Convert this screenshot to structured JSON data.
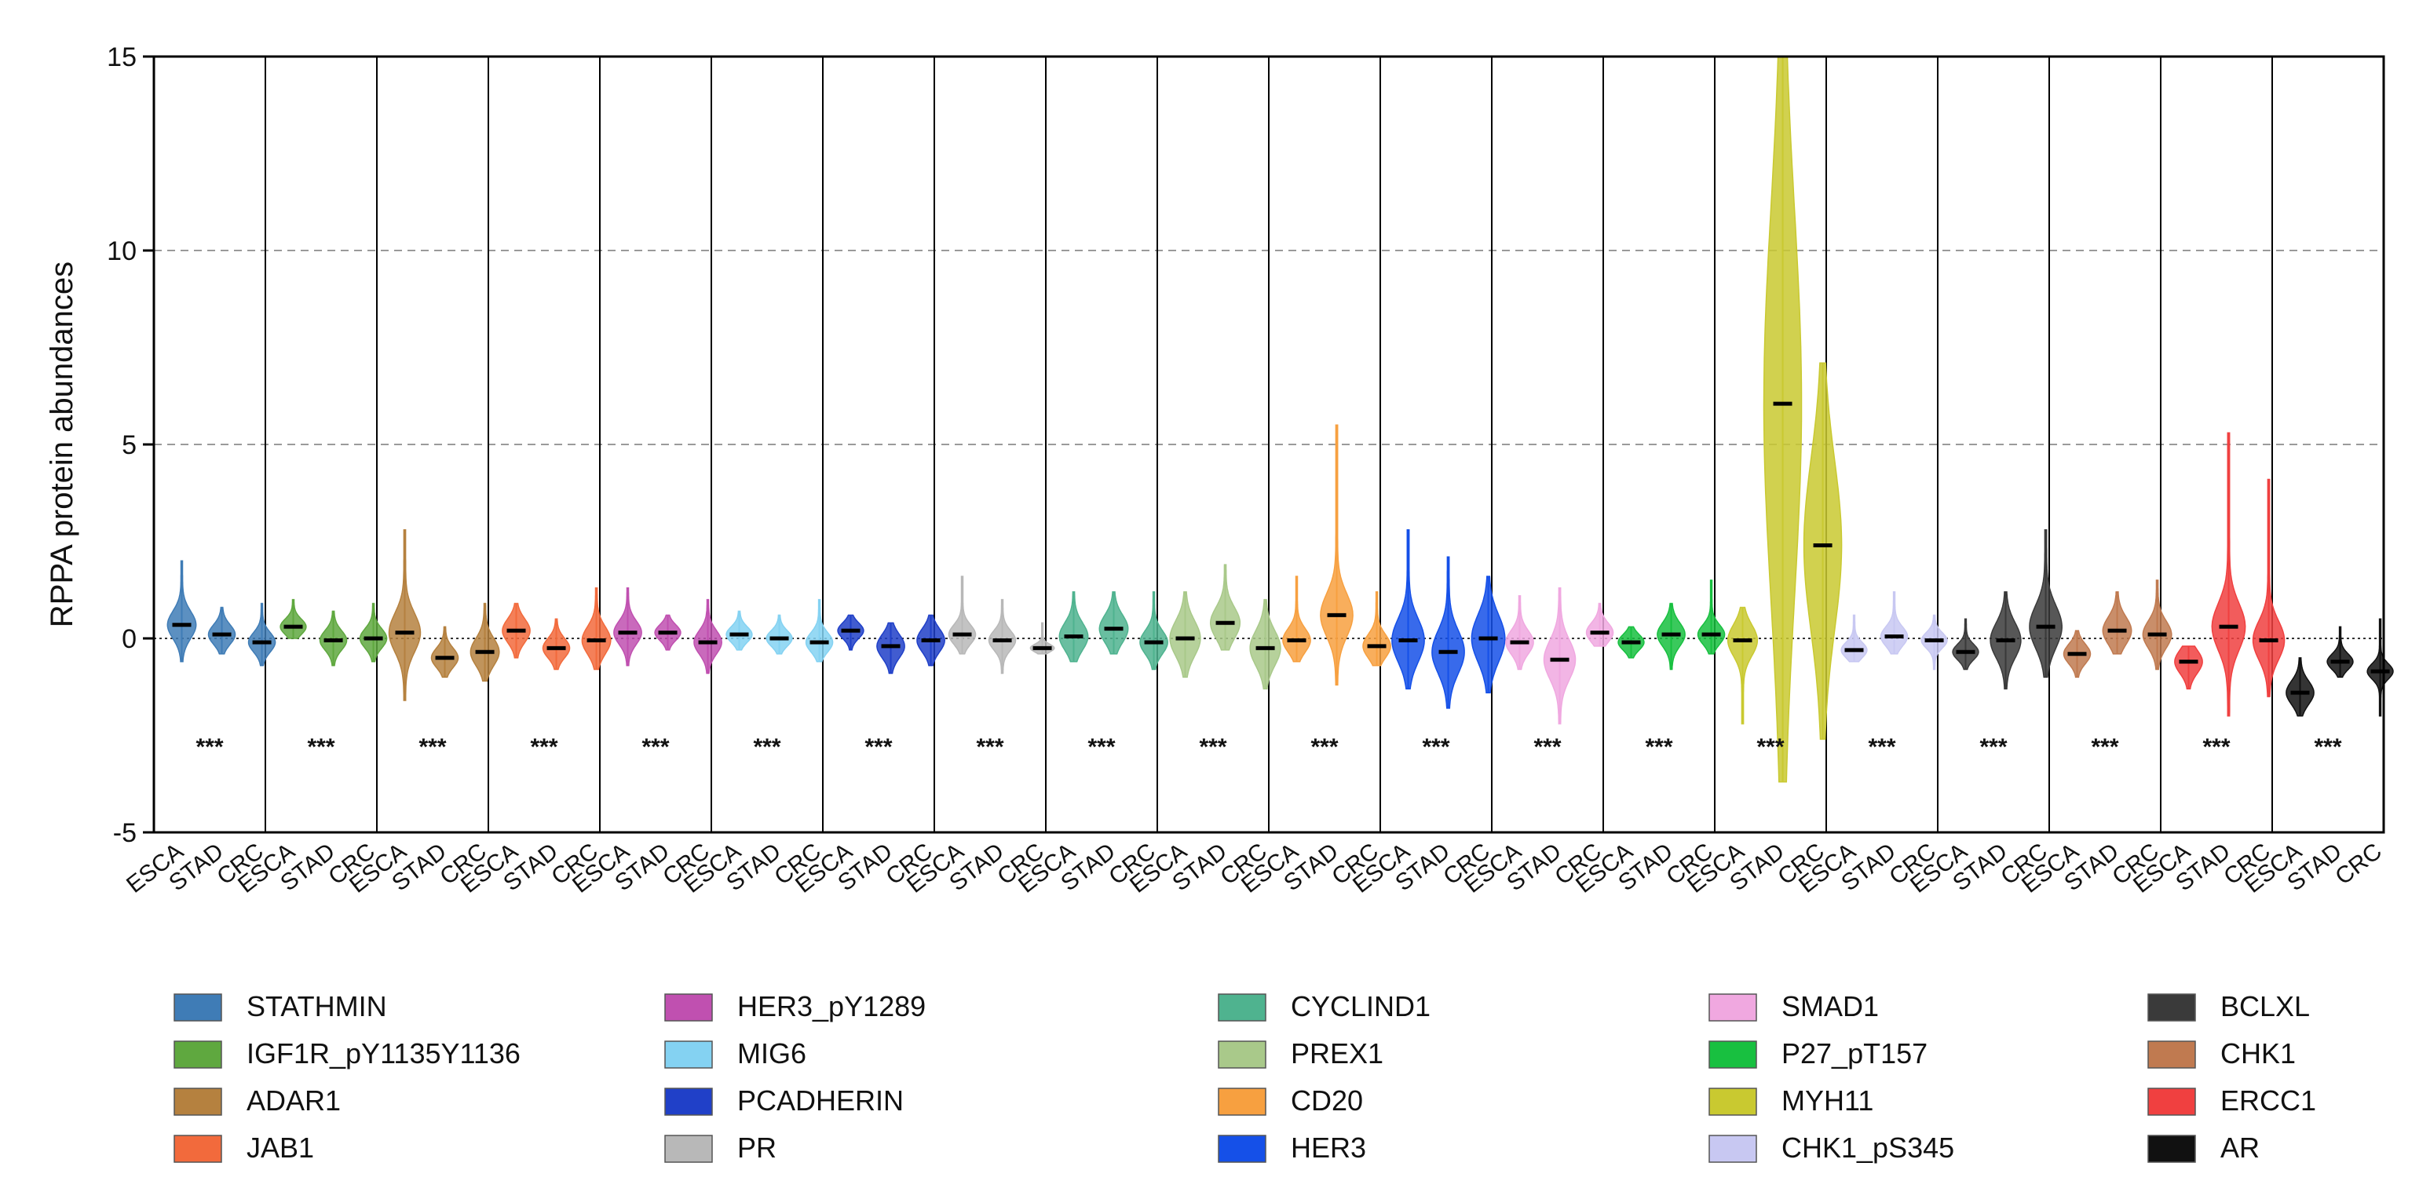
{
  "chart_data": {
    "type": "violin",
    "ylabel": "RPPA protein abundances",
    "ylim": [
      -5,
      15
    ],
    "yticks": [
      -5,
      0,
      5,
      10,
      15
    ],
    "grid_lines_y": [
      5,
      10
    ],
    "groups": [
      "ESCA",
      "STAD",
      "CRC"
    ],
    "significance": "***",
    "legend_position": "bottom",
    "proteins": [
      {
        "name": "STATHMIN",
        "color": "#3f7cb6",
        "medians": [
          0.35,
          0.1,
          -0.1
        ],
        "mins": [
          -0.6,
          -0.4,
          -0.7
        ],
        "maxs": [
          2.0,
          0.8,
          0.9
        ],
        "spreads": [
          0.35,
          0.25,
          0.25
        ]
      },
      {
        "name": "IGF1R_pY1135Y1136",
        "color": "#5fa83f",
        "medians": [
          0.3,
          -0.05,
          0.0
        ],
        "mins": [
          0.0,
          -0.7,
          -0.6
        ],
        "maxs": [
          1.0,
          0.7,
          0.9
        ],
        "spreads": [
          0.2,
          0.25,
          0.25
        ]
      },
      {
        "name": "ADAR1",
        "color": "#b5813f",
        "medians": [
          0.15,
          -0.5,
          -0.35
        ],
        "mins": [
          -1.6,
          -1.0,
          -1.1
        ],
        "maxs": [
          2.8,
          0.3,
          0.9
        ],
        "spreads": [
          0.5,
          0.25,
          0.35
        ]
      },
      {
        "name": "JAB1",
        "color": "#f26a3c",
        "medians": [
          0.2,
          -0.25,
          -0.05
        ],
        "mins": [
          -0.5,
          -0.8,
          -0.8
        ],
        "maxs": [
          0.9,
          0.5,
          1.3
        ],
        "spreads": [
          0.3,
          0.25,
          0.35
        ]
      },
      {
        "name": "HER3_pY1289",
        "color": "#c050b0",
        "medians": [
          0.15,
          0.15,
          -0.1
        ],
        "mins": [
          -0.7,
          -0.3,
          -0.9
        ],
        "maxs": [
          1.3,
          0.6,
          1.0
        ],
        "spreads": [
          0.3,
          0.2,
          0.3
        ]
      },
      {
        "name": "MIG6",
        "color": "#84d2f2",
        "medians": [
          0.1,
          0.0,
          -0.1
        ],
        "mins": [
          -0.3,
          -0.4,
          -0.6
        ],
        "maxs": [
          0.7,
          0.6,
          1.0
        ],
        "spreads": [
          0.2,
          0.2,
          0.25
        ]
      },
      {
        "name": "PCADHERIN",
        "color": "#2040c8",
        "medians": [
          0.2,
          -0.2,
          -0.05
        ],
        "mins": [
          -0.3,
          -0.9,
          -0.7
        ],
        "maxs": [
          0.6,
          0.4,
          0.6
        ],
        "spreads": [
          0.2,
          0.3,
          0.3
        ]
      },
      {
        "name": "PR",
        "color": "#b8b8b8",
        "medians": [
          0.1,
          -0.05,
          -0.25
        ],
        "mins": [
          -0.4,
          -0.9,
          -0.4
        ],
        "maxs": [
          1.6,
          1.0,
          0.4
        ],
        "spreads": [
          0.25,
          0.25,
          0.1
        ]
      },
      {
        "name": "CYCLIND1",
        "color": "#4fb38f",
        "medians": [
          0.05,
          0.25,
          -0.1
        ],
        "mins": [
          -0.6,
          -0.4,
          -0.8
        ],
        "maxs": [
          1.2,
          1.2,
          1.2
        ],
        "spreads": [
          0.35,
          0.35,
          0.3
        ]
      },
      {
        "name": "PREX1",
        "color": "#a9c98a",
        "medians": [
          0.0,
          0.4,
          -0.25
        ],
        "mins": [
          -1.0,
          -0.3,
          -1.3
        ],
        "maxs": [
          1.2,
          1.9,
          1.0
        ],
        "spreads": [
          0.45,
          0.4,
          0.45
        ]
      },
      {
        "name": "CD20",
        "color": "#f7a040",
        "medians": [
          -0.05,
          0.6,
          -0.2
        ],
        "mins": [
          -0.6,
          -1.2,
          -0.7
        ],
        "maxs": [
          1.6,
          5.5,
          1.2
        ],
        "spreads": [
          0.3,
          0.55,
          0.3
        ]
      },
      {
        "name": "HER3",
        "color": "#1550e8",
        "medians": [
          -0.05,
          -0.35,
          0.0
        ],
        "mins": [
          -1.3,
          -1.8,
          -1.4
        ],
        "maxs": [
          2.8,
          2.1,
          1.6
        ],
        "spreads": [
          0.55,
          0.55,
          0.6
        ]
      },
      {
        "name": "SMAD1",
        "color": "#f0a8e0",
        "medians": [
          -0.1,
          -0.55,
          0.15
        ],
        "mins": [
          -0.8,
          -2.2,
          -0.2
        ],
        "maxs": [
          1.1,
          1.3,
          0.9
        ],
        "spreads": [
          0.3,
          0.5,
          0.25
        ]
      },
      {
        "name": "P27_pT157",
        "color": "#18c040",
        "medians": [
          -0.1,
          0.1,
          0.1
        ],
        "mins": [
          -0.5,
          -0.8,
          -0.4
        ],
        "maxs": [
          0.3,
          0.9,
          1.5
        ],
        "spreads": [
          0.2,
          0.3,
          0.25
        ]
      },
      {
        "name": "MYH11",
        "color": "#c9c930",
        "medians": [
          -0.05,
          6.05,
          2.4
        ],
        "mins": [
          -2.2,
          -3.7,
          -2.6
        ],
        "maxs": [
          0.8,
          15.0,
          7.1
        ],
        "spreads": [
          0.4,
          5.0,
          2.2
        ]
      },
      {
        "name": "CHK1_pS345",
        "color": "#c8c8f2",
        "medians": [
          -0.3,
          0.05,
          -0.05
        ],
        "mins": [
          -0.6,
          -0.4,
          -0.8
        ],
        "maxs": [
          0.6,
          1.2,
          0.6
        ],
        "spreads": [
          0.2,
          0.25,
          0.2
        ]
      },
      {
        "name": "BCLXL",
        "color": "#3a3a3a",
        "medians": [
          -0.35,
          -0.05,
          0.3
        ],
        "mins": [
          -0.8,
          -1.3,
          -1.0
        ],
        "maxs": [
          0.5,
          1.2,
          2.8
        ],
        "spreads": [
          0.2,
          0.45,
          0.55
        ]
      },
      {
        "name": "CHK1",
        "color": "#c07a50",
        "medians": [
          -0.4,
          0.2,
          0.1
        ],
        "mins": [
          -1.0,
          -0.4,
          -0.8
        ],
        "maxs": [
          0.2,
          1.2,
          1.5
        ],
        "spreads": [
          0.25,
          0.35,
          0.35
        ]
      },
      {
        "name": "ERCC1",
        "color": "#f04040",
        "medians": [
          -0.6,
          0.3,
          -0.05
        ],
        "mins": [
          -1.3,
          -2.0,
          -1.5
        ],
        "maxs": [
          -0.2,
          5.3,
          4.1
        ],
        "spreads": [
          0.3,
          0.6,
          0.5
        ]
      },
      {
        "name": "AR",
        "color": "#111111",
        "medians": [
          -1.4,
          -0.6,
          -0.85
        ],
        "mins": [
          -2.0,
          -1.0,
          -2.0
        ],
        "maxs": [
          -0.5,
          0.3,
          0.5
        ],
        "spreads": [
          0.3,
          0.2,
          0.2
        ]
      }
    ]
  }
}
